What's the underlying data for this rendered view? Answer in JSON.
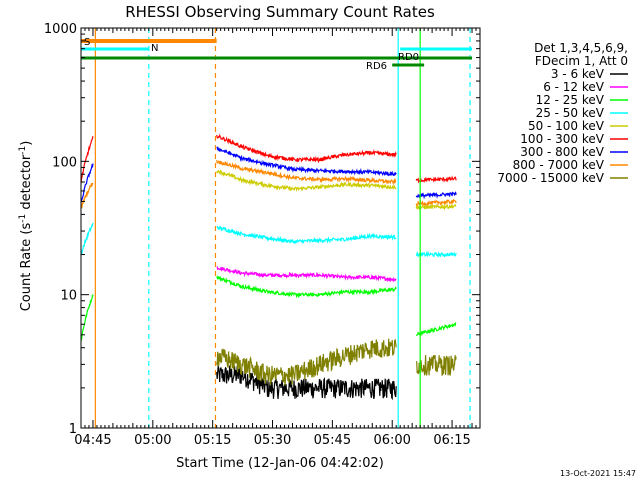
{
  "chart_data": {
    "type": "line",
    "title": "RHESSI Observing Summary Count Rates",
    "xlabel": "Start Time (12-Jan-06 04:42:02)",
    "ylabel_main": "Count Rate (s",
    "ylabel_sup1": "-1",
    "ylabel_mid": " detector",
    "ylabel_sup2": "-1",
    "ylabel_end": ")",
    "yscale": "log",
    "ylim": [
      1,
      1000
    ],
    "xlim_min": [
      0,
      100
    ],
    "x_ticks": [
      {
        "label": "04:45",
        "value": 3
      },
      {
        "label": "05:00",
        "value": 18
      },
      {
        "label": "05:15",
        "value": 33
      },
      {
        "label": "05:30",
        "value": 48
      },
      {
        "label": "05:45",
        "value": 63
      },
      {
        "label": "06:00",
        "value": 78
      },
      {
        "label": "06:15",
        "value": 93
      }
    ],
    "y_ticks": [
      {
        "label": "1",
        "value": 1
      },
      {
        "label": "10",
        "value": 10
      },
      {
        "label": "100",
        "value": 100
      },
      {
        "label": "1000",
        "value": 1000
      }
    ],
    "legend_header": [
      "Det 1,3,4,5,6,9,",
      "FDecim 1, Att 0"
    ],
    "series": [
      {
        "name": "3 - 6 keV",
        "color": "#000000",
        "seg1": [
          0,
          0
        ],
        "seg2": [
          2.5,
          2.5,
          2,
          2,
          2,
          2,
          2,
          2
        ],
        "seg3": [
          0,
          0
        ]
      },
      {
        "name": "6 - 12 keV",
        "color": "#ff00ff",
        "seg1": [
          0,
          0
        ],
        "seg2": [
          16,
          14.5,
          14,
          14,
          14,
          13.5,
          13.5,
          13
        ],
        "seg3": [
          0,
          0
        ]
      },
      {
        "name": "12 - 25 keV",
        "color": "#00ff00",
        "seg1": [
          4.5,
          10
        ],
        "seg2": [
          13.5,
          11.5,
          10.5,
          10,
          10,
          10.5,
          10.5,
          11
        ],
        "seg3": [
          5,
          6
        ]
      },
      {
        "name": "25 - 50 keV",
        "color": "#00ffff",
        "seg1": [
          20,
          34
        ],
        "seg2": [
          32,
          28.5,
          26.5,
          25,
          25.5,
          26,
          27.5,
          27
        ],
        "seg3": [
          20,
          20
        ]
      },
      {
        "name": "50 - 100 keV",
        "color": "#cccc00",
        "seg1": [
          0,
          0
        ],
        "seg2": [
          85,
          72,
          66,
          62,
          64,
          67,
          66,
          64
        ],
        "seg3": [
          45,
          46
        ]
      },
      {
        "name": "100 - 300 keV",
        "color": "#ff0000",
        "seg1": [
          70,
          150
        ],
        "seg2": [
          155,
          128,
          110,
          103,
          103,
          112,
          116,
          112
        ],
        "seg3": [
          72,
          74
        ]
      },
      {
        "name": "300 - 800 keV",
        "color": "#0000ff",
        "seg1": [
          48,
          95
        ],
        "seg2": [
          125,
          105,
          95,
          87,
          85,
          84,
          83,
          80
        ],
        "seg3": [
          55,
          57
        ]
      },
      {
        "name": "800 - 7000 keV",
        "color": "#ff8800",
        "seg1": [
          45,
          70
        ],
        "seg2": [
          100,
          88,
          82,
          75,
          73,
          74,
          72,
          70
        ],
        "seg3": [
          48,
          50
        ]
      },
      {
        "name": "7000 - 15000 keV",
        "color": "#808000",
        "seg1": [
          0,
          0
        ],
        "seg2": [
          3.5,
          3,
          2.5,
          2.5,
          3,
          3.5,
          4,
          4
        ],
        "seg3": [
          3,
          3
        ]
      }
    ],
    "flags": [
      {
        "label": "S",
        "color": "#ff8800"
      },
      {
        "label": "N",
        "color": "#00ffff"
      },
      {
        "label": "RD6",
        "color": "#008800"
      },
      {
        "label": "RD0",
        "color": "#008800"
      }
    ],
    "timestamp": "13-Oct-2021 15:47"
  }
}
